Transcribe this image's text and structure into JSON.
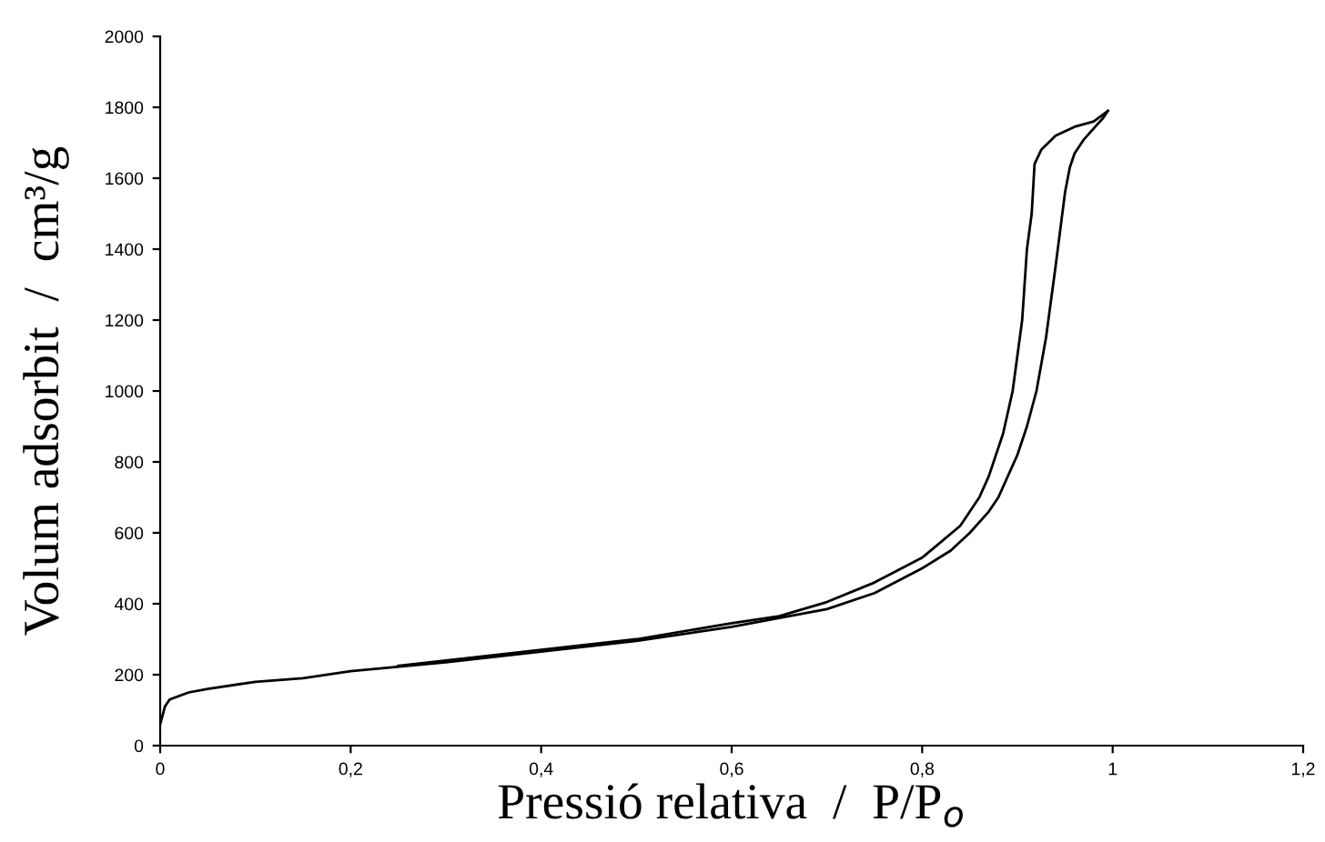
{
  "chart_data": {
    "type": "line",
    "xlabel": "Pressió relativa  /  P/P$_{o}$",
    "ylabel": "Volum adsorbit  /  cm³/g",
    "series": [
      {
        "color": "#000000",
        "x": [
          0,
          0.005,
          0.01,
          0.03,
          0.05,
          0.1,
          0.15,
          0.2,
          0.3,
          0.4,
          0.5,
          0.6,
          0.7,
          0.75,
          0.8,
          0.83,
          0.85,
          0.87,
          0.88,
          0.9,
          0.91,
          0.92,
          0.93,
          0.94,
          0.95,
          0.955,
          0.96,
          0.97,
          0.98,
          0.99,
          0.995
        ],
        "values": [
          60,
          110,
          130,
          150,
          160,
          180,
          190,
          210,
          235,
          265,
          295,
          335,
          385,
          430,
          500,
          550,
          600,
          660,
          700,
          820,
          900,
          1000,
          1150,
          1350,
          1560,
          1630,
          1670,
          1710,
          1740,
          1770,
          1790
        ]
      },
      {
        "color": "#000000",
        "x": [
          0.995,
          0.99,
          0.98,
          0.96,
          0.94,
          0.925,
          0.918,
          0.915,
          0.91,
          0.905,
          0.9,
          0.895,
          0.885,
          0.87,
          0.86,
          0.84,
          0.8,
          0.75,
          0.7,
          0.65,
          0.6,
          0.5,
          0.4,
          0.3,
          0.25
        ],
        "values": [
          1790,
          1780,
          1760,
          1745,
          1720,
          1680,
          1640,
          1500,
          1400,
          1200,
          1100,
          1000,
          880,
          760,
          700,
          620,
          530,
          460,
          405,
          365,
          345,
          300,
          270,
          240,
          225
        ]
      }
    ],
    "xlim": [
      0,
      1.2
    ],
    "xticks": [
      0,
      {
        "value": 0.2,
        "label": "0,2"
      },
      {
        "value": 0.4,
        "label": "0,4"
      },
      {
        "value": 0.6,
        "label": "0,6"
      },
      {
        "value": 0.8,
        "label": "0,8"
      },
      1,
      {
        "value": 1.2,
        "label": "1,2"
      }
    ],
    "ylim": [
      0,
      2000
    ],
    "yticks": [
      0,
      200,
      400,
      600,
      800,
      1000,
      1200,
      1400,
      1600,
      1800,
      2000
    ],
    "grid": false,
    "legend": false,
    "marker": "none",
    "line_style": "solid"
  }
}
